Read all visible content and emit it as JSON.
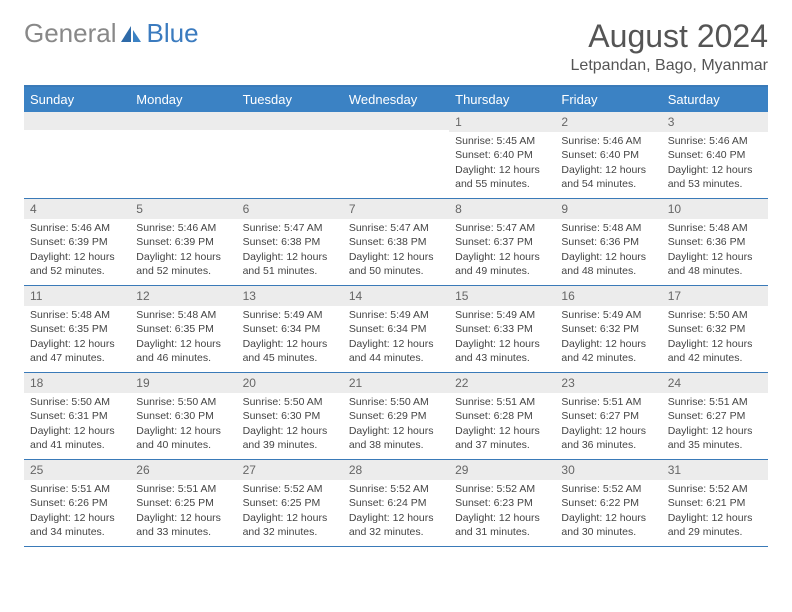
{
  "brand": {
    "name_a": "General",
    "name_b": "Blue"
  },
  "title": "August 2024",
  "location": "Letpandan, Bago, Myanmar",
  "colors": {
    "header_bar": "#3b82c4",
    "header_border": "#3a7ab8",
    "daynum_bg": "#ececec",
    "text": "#444444",
    "logo_gray": "#888888",
    "logo_blue": "#3b7bbf"
  },
  "weekdays": [
    "Sunday",
    "Monday",
    "Tuesday",
    "Wednesday",
    "Thursday",
    "Friday",
    "Saturday"
  ],
  "weeks": [
    [
      {
        "n": "",
        "sr": "",
        "ss": "",
        "dl": ""
      },
      {
        "n": "",
        "sr": "",
        "ss": "",
        "dl": ""
      },
      {
        "n": "",
        "sr": "",
        "ss": "",
        "dl": ""
      },
      {
        "n": "",
        "sr": "",
        "ss": "",
        "dl": ""
      },
      {
        "n": "1",
        "sr": "Sunrise: 5:45 AM",
        "ss": "Sunset: 6:40 PM",
        "dl": "Daylight: 12 hours and 55 minutes."
      },
      {
        "n": "2",
        "sr": "Sunrise: 5:46 AM",
        "ss": "Sunset: 6:40 PM",
        "dl": "Daylight: 12 hours and 54 minutes."
      },
      {
        "n": "3",
        "sr": "Sunrise: 5:46 AM",
        "ss": "Sunset: 6:40 PM",
        "dl": "Daylight: 12 hours and 53 minutes."
      }
    ],
    [
      {
        "n": "4",
        "sr": "Sunrise: 5:46 AM",
        "ss": "Sunset: 6:39 PM",
        "dl": "Daylight: 12 hours and 52 minutes."
      },
      {
        "n": "5",
        "sr": "Sunrise: 5:46 AM",
        "ss": "Sunset: 6:39 PM",
        "dl": "Daylight: 12 hours and 52 minutes."
      },
      {
        "n": "6",
        "sr": "Sunrise: 5:47 AM",
        "ss": "Sunset: 6:38 PM",
        "dl": "Daylight: 12 hours and 51 minutes."
      },
      {
        "n": "7",
        "sr": "Sunrise: 5:47 AM",
        "ss": "Sunset: 6:38 PM",
        "dl": "Daylight: 12 hours and 50 minutes."
      },
      {
        "n": "8",
        "sr": "Sunrise: 5:47 AM",
        "ss": "Sunset: 6:37 PM",
        "dl": "Daylight: 12 hours and 49 minutes."
      },
      {
        "n": "9",
        "sr": "Sunrise: 5:48 AM",
        "ss": "Sunset: 6:36 PM",
        "dl": "Daylight: 12 hours and 48 minutes."
      },
      {
        "n": "10",
        "sr": "Sunrise: 5:48 AM",
        "ss": "Sunset: 6:36 PM",
        "dl": "Daylight: 12 hours and 48 minutes."
      }
    ],
    [
      {
        "n": "11",
        "sr": "Sunrise: 5:48 AM",
        "ss": "Sunset: 6:35 PM",
        "dl": "Daylight: 12 hours and 47 minutes."
      },
      {
        "n": "12",
        "sr": "Sunrise: 5:48 AM",
        "ss": "Sunset: 6:35 PM",
        "dl": "Daylight: 12 hours and 46 minutes."
      },
      {
        "n": "13",
        "sr": "Sunrise: 5:49 AM",
        "ss": "Sunset: 6:34 PM",
        "dl": "Daylight: 12 hours and 45 minutes."
      },
      {
        "n": "14",
        "sr": "Sunrise: 5:49 AM",
        "ss": "Sunset: 6:34 PM",
        "dl": "Daylight: 12 hours and 44 minutes."
      },
      {
        "n": "15",
        "sr": "Sunrise: 5:49 AM",
        "ss": "Sunset: 6:33 PM",
        "dl": "Daylight: 12 hours and 43 minutes."
      },
      {
        "n": "16",
        "sr": "Sunrise: 5:49 AM",
        "ss": "Sunset: 6:32 PM",
        "dl": "Daylight: 12 hours and 42 minutes."
      },
      {
        "n": "17",
        "sr": "Sunrise: 5:50 AM",
        "ss": "Sunset: 6:32 PM",
        "dl": "Daylight: 12 hours and 42 minutes."
      }
    ],
    [
      {
        "n": "18",
        "sr": "Sunrise: 5:50 AM",
        "ss": "Sunset: 6:31 PM",
        "dl": "Daylight: 12 hours and 41 minutes."
      },
      {
        "n": "19",
        "sr": "Sunrise: 5:50 AM",
        "ss": "Sunset: 6:30 PM",
        "dl": "Daylight: 12 hours and 40 minutes."
      },
      {
        "n": "20",
        "sr": "Sunrise: 5:50 AM",
        "ss": "Sunset: 6:30 PM",
        "dl": "Daylight: 12 hours and 39 minutes."
      },
      {
        "n": "21",
        "sr": "Sunrise: 5:50 AM",
        "ss": "Sunset: 6:29 PM",
        "dl": "Daylight: 12 hours and 38 minutes."
      },
      {
        "n": "22",
        "sr": "Sunrise: 5:51 AM",
        "ss": "Sunset: 6:28 PM",
        "dl": "Daylight: 12 hours and 37 minutes."
      },
      {
        "n": "23",
        "sr": "Sunrise: 5:51 AM",
        "ss": "Sunset: 6:27 PM",
        "dl": "Daylight: 12 hours and 36 minutes."
      },
      {
        "n": "24",
        "sr": "Sunrise: 5:51 AM",
        "ss": "Sunset: 6:27 PM",
        "dl": "Daylight: 12 hours and 35 minutes."
      }
    ],
    [
      {
        "n": "25",
        "sr": "Sunrise: 5:51 AM",
        "ss": "Sunset: 6:26 PM",
        "dl": "Daylight: 12 hours and 34 minutes."
      },
      {
        "n": "26",
        "sr": "Sunrise: 5:51 AM",
        "ss": "Sunset: 6:25 PM",
        "dl": "Daylight: 12 hours and 33 minutes."
      },
      {
        "n": "27",
        "sr": "Sunrise: 5:52 AM",
        "ss": "Sunset: 6:25 PM",
        "dl": "Daylight: 12 hours and 32 minutes."
      },
      {
        "n": "28",
        "sr": "Sunrise: 5:52 AM",
        "ss": "Sunset: 6:24 PM",
        "dl": "Daylight: 12 hours and 32 minutes."
      },
      {
        "n": "29",
        "sr": "Sunrise: 5:52 AM",
        "ss": "Sunset: 6:23 PM",
        "dl": "Daylight: 12 hours and 31 minutes."
      },
      {
        "n": "30",
        "sr": "Sunrise: 5:52 AM",
        "ss": "Sunset: 6:22 PM",
        "dl": "Daylight: 12 hours and 30 minutes."
      },
      {
        "n": "31",
        "sr": "Sunrise: 5:52 AM",
        "ss": "Sunset: 6:21 PM",
        "dl": "Daylight: 12 hours and 29 minutes."
      }
    ]
  ]
}
